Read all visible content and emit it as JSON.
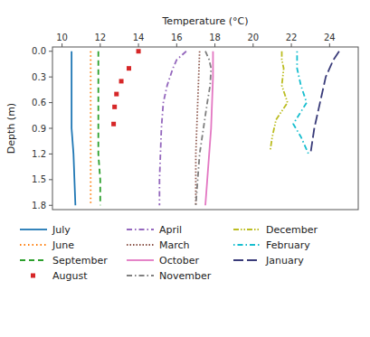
{
  "chart_data": {
    "type": "line",
    "xlabel": "Temperature (°C)",
    "ylabel": "Depth (m)",
    "xlim": [
      9.5,
      25.5
    ],
    "ylim": [
      1.85,
      -0.05
    ],
    "xticks": [
      10,
      12,
      14,
      16,
      18,
      20,
      22,
      24
    ],
    "yticks": [
      {
        "value": 0.0,
        "label": "0.0"
      },
      0.3,
      0.6,
      0.9,
      1.2,
      1.5,
      1.8
    ],
    "grid": false,
    "legend": "bottom",
    "series": [
      {
        "name": "July",
        "line_style": "solid",
        "x": [
          10.5,
          10.5,
          10.5,
          10.5,
          10.6,
          10.7
        ],
        "values": [
          0.0,
          0.3,
          0.6,
          0.9,
          1.2,
          1.8
        ]
      },
      {
        "name": "June",
        "line_style": "dotted",
        "x": [
          11.5,
          11.5,
          11.5,
          11.5,
          11.5,
          11.5,
          11.5
        ],
        "values": [
          0.0,
          0.3,
          0.6,
          0.9,
          1.2,
          1.5,
          1.8
        ]
      },
      {
        "name": "September",
        "line_style": "dashed",
        "x": [
          11.9,
          11.9,
          11.9,
          11.9,
          11.9,
          12.0,
          12.0
        ],
        "values": [
          0.0,
          0.3,
          0.6,
          0.9,
          1.2,
          1.5,
          1.8
        ]
      },
      {
        "name": "August",
        "type": "scatter",
        "marker": "square",
        "x": [
          14.0,
          13.5,
          13.1,
          12.85,
          12.75,
          12.7
        ],
        "values": [
          0.0,
          0.2,
          0.35,
          0.5,
          0.65,
          0.85
        ]
      },
      {
        "name": "April",
        "line_style": "dash-dot",
        "x": [
          16.5,
          16.0,
          15.8,
          15.5,
          15.3,
          15.2,
          15.15,
          15.1,
          15.1
        ],
        "values": [
          0.0,
          0.1,
          0.2,
          0.4,
          0.6,
          0.9,
          1.2,
          1.5,
          1.8
        ]
      },
      {
        "name": "March",
        "line_style": "dense-dotted",
        "x": [
          17.2,
          17.15,
          17.1,
          17.05,
          17.0,
          17.0,
          17.0
        ],
        "values": [
          0.0,
          0.3,
          0.6,
          0.9,
          1.2,
          1.5,
          1.8
        ]
      },
      {
        "name": "October",
        "line_style": "solid",
        "x": [
          17.9,
          17.9,
          17.85,
          17.8,
          17.7,
          17.6,
          17.5
        ],
        "values": [
          0.0,
          0.3,
          0.6,
          0.9,
          1.2,
          1.5,
          1.8
        ]
      },
      {
        "name": "November",
        "line_style": "dash-dot",
        "x": [
          17.5,
          17.7,
          17.8,
          17.75,
          17.6,
          17.4,
          17.2,
          17.1,
          17.0
        ],
        "values": [
          0.0,
          0.1,
          0.2,
          0.4,
          0.6,
          0.9,
          1.2,
          1.5,
          1.8
        ]
      },
      {
        "name": "December",
        "line_style": "dash-dot-dot",
        "x": [
          21.5,
          21.5,
          21.6,
          21.5,
          21.8,
          21.2,
          21.0,
          20.9
        ],
        "values": [
          0.0,
          0.1,
          0.2,
          0.4,
          0.6,
          0.8,
          1.0,
          1.15
        ]
      },
      {
        "name": "February",
        "line_style": "dot-dash",
        "x": [
          22.3,
          22.3,
          22.3,
          22.5,
          22.8,
          22.1,
          22.5,
          22.9
        ],
        "values": [
          0.0,
          0.1,
          0.2,
          0.4,
          0.6,
          0.85,
          1.0,
          1.2
        ]
      },
      {
        "name": "January",
        "line_style": "long-dash",
        "x": [
          24.5,
          24.2,
          24.0,
          23.8,
          23.7,
          23.5,
          23.2,
          23.0
        ],
        "values": [
          0.0,
          0.1,
          0.2,
          0.3,
          0.4,
          0.6,
          0.9,
          1.2
        ]
      }
    ]
  }
}
